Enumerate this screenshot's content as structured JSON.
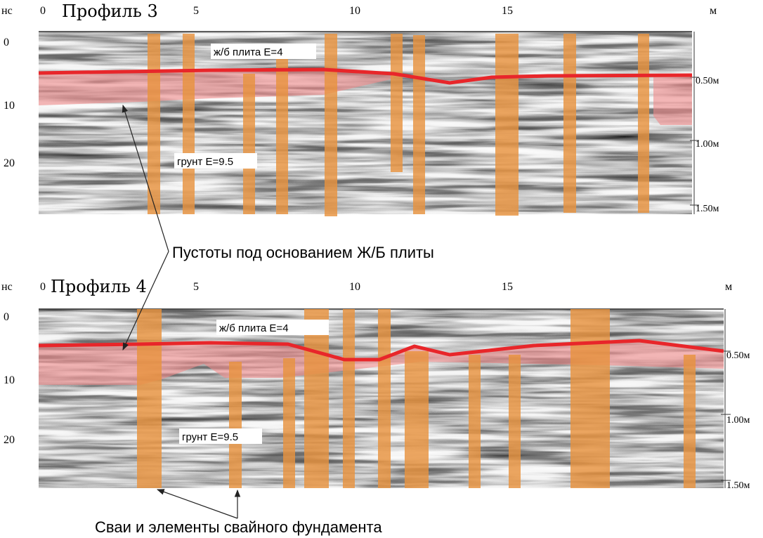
{
  "profiles": [
    {
      "title": "Профиль 3",
      "y_unit": "нс",
      "x_unit": "м",
      "x_ticks": [
        "0",
        "5",
        "10",
        "15"
      ],
      "y_ticks": [
        "0",
        "10",
        "20"
      ],
      "depth_labels": [
        "0.50м",
        "1.00м",
        "1.50м"
      ],
      "slab_label": "ж/б плита E=4",
      "soil_label": "грунт E=9.5"
    },
    {
      "title": "Профиль 4",
      "y_unit": "нс",
      "x_unit": "м",
      "x_ticks": [
        "0",
        "5",
        "10",
        "15"
      ],
      "y_ticks": [
        "0",
        "10",
        "20"
      ],
      "depth_labels": [
        "0.50м",
        "1.00м",
        "1.50м"
      ],
      "slab_label": "ж/б плита E=4",
      "soil_label": "грунт E=9.5"
    }
  ],
  "annotations": {
    "voids": "Пустоты под основанием Ж/Б плиты",
    "piles": "Сваи и элементы свайного фундамента"
  }
}
